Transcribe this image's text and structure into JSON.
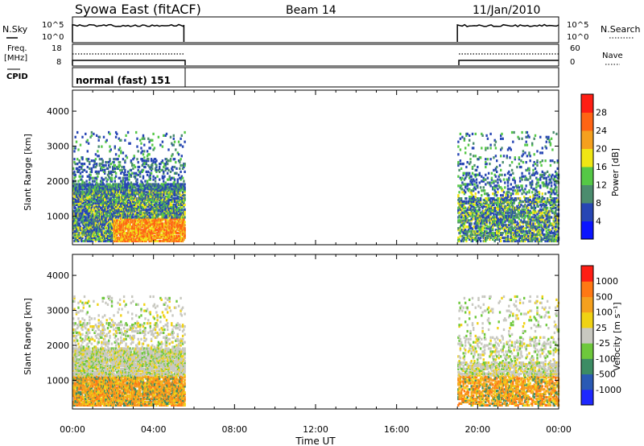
{
  "header": {
    "station": "Syowa East (fitACF)",
    "beam": "Beam 14",
    "date": "11/Jan/2010"
  },
  "noise_panel": {
    "left_label": "N.Sky",
    "left_ticks": [
      "10^5",
      "10^0"
    ],
    "right_label": "N.Search",
    "right_ticks": [
      "10^5",
      "10^0"
    ]
  },
  "freq_panel": {
    "left_label_1": "Freq.",
    "left_label_2": "[MHz]",
    "left_ticks": [
      "18",
      "8"
    ],
    "right_label": "Nave",
    "right_ticks": [
      "60",
      "0"
    ]
  },
  "cpid_panel": {
    "label": "CPID",
    "mode_text": "normal (fast) 151"
  },
  "time_axis": {
    "title": "Time UT",
    "ticks": [
      "00:00",
      "04:00",
      "08:00",
      "12:00",
      "16:00",
      "20:00",
      "00:00"
    ]
  },
  "chart_data": [
    {
      "type": "heatmap",
      "name": "power",
      "xlabel": "Time UT",
      "ylabel": "Slant Range [km]",
      "x_range_hours": [
        0,
        24
      ],
      "ylim": [
        180,
        4600
      ],
      "y_ticks": [
        "1000",
        "2000",
        "3000",
        "4000"
      ],
      "data_intervals_hours": [
        [
          0,
          5.5
        ],
        [
          19,
          24
        ]
      ],
      "colorbar": {
        "label": "Power [dB]",
        "ticks": [
          "4",
          "8",
          "12",
          "16",
          "20",
          "24",
          "28"
        ],
        "colors": [
          "#0a14ff",
          "#2746b4",
          "#4b8c6e",
          "#55c846",
          "#f0e614",
          "#f5a01e",
          "#ff6414",
          "#ff1e14"
        ]
      }
    },
    {
      "type": "heatmap",
      "name": "velocity",
      "xlabel": "Time UT",
      "ylabel": "Slant Range [km]",
      "x_range_hours": [
        0,
        24
      ],
      "ylim": [
        180,
        4600
      ],
      "y_ticks": [
        "1000",
        "2000",
        "3000",
        "4000"
      ],
      "data_intervals_hours": [
        [
          0,
          5.5
        ],
        [
          19,
          24
        ]
      ],
      "colorbar": {
        "label": "Velocity [m s⁻¹]",
        "ticks": [
          "1000",
          "500",
          "100",
          "25",
          "-25",
          "-100",
          "-500",
          "-1000"
        ],
        "colors": [
          "#1e28ff",
          "#2a5ab4",
          "#3c8c64",
          "#6ec83c",
          "#c8c8c0",
          "#f0d214",
          "#f5a01e",
          "#ff7814",
          "#ff1e14"
        ]
      }
    }
  ]
}
